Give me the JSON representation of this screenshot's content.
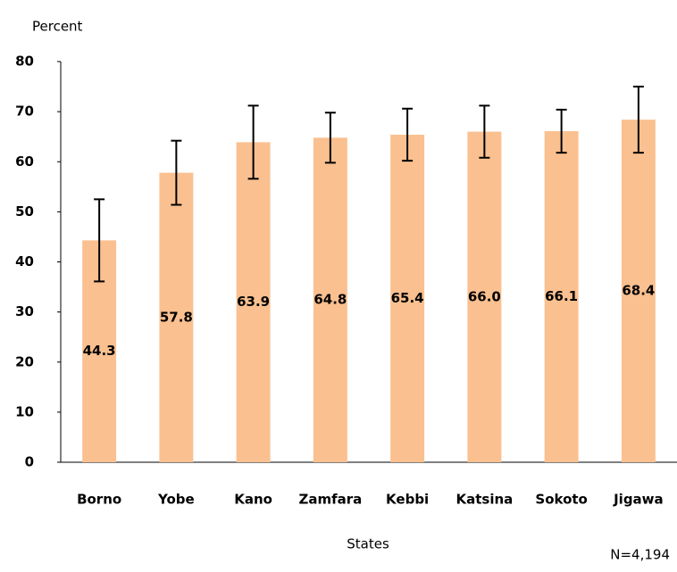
{
  "chart_data": {
    "type": "bar",
    "y_axis_label": "Percent",
    "x_axis_label": "States",
    "annotation": "N=4,194",
    "categories": [
      "Borno",
      "Yobe",
      "Kano",
      "Zamfara",
      "Kebbi",
      "Katsina",
      "Sokoto",
      "Jigawa"
    ],
    "values": [
      44.3,
      57.8,
      63.9,
      64.8,
      65.4,
      66.0,
      66.1,
      68.4
    ],
    "value_labels": [
      "44.3",
      "57.8",
      "63.9",
      "64.8",
      "65.4",
      "66.0",
      "66.1",
      "68.4"
    ],
    "errors": [
      8.2,
      6.4,
      7.3,
      5.0,
      5.2,
      5.2,
      4.3,
      6.6
    ],
    "color": "#fac090",
    "ylim": [
      0,
      80
    ],
    "yticks": [
      0,
      10,
      20,
      30,
      40,
      50,
      60,
      70,
      80
    ],
    "grid": false
  }
}
